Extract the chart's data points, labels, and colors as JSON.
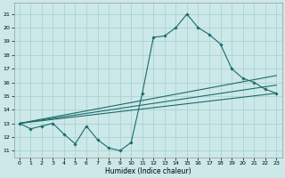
{
  "xlabel": "Humidex (Indice chaleur)",
  "xlim": [
    -0.5,
    23.5
  ],
  "ylim": [
    10.5,
    21.8
  ],
  "yticks": [
    11,
    12,
    13,
    14,
    15,
    16,
    17,
    18,
    19,
    20,
    21
  ],
  "xticks": [
    0,
    1,
    2,
    3,
    4,
    5,
    6,
    7,
    8,
    9,
    10,
    11,
    12,
    13,
    14,
    15,
    16,
    17,
    18,
    19,
    20,
    21,
    22,
    23
  ],
  "bg_color": "#cce8e8",
  "grid_color": "#aad4d0",
  "line_color": "#1a6b6b",
  "main_line": {
    "x": [
      0,
      1,
      2,
      3,
      4,
      5,
      6,
      7,
      8,
      9,
      10,
      11,
      12,
      13,
      14,
      15,
      16,
      17,
      18,
      19,
      20,
      21,
      22,
      23
    ],
    "y": [
      13.0,
      12.6,
      12.8,
      13.0,
      12.2,
      11.5,
      12.8,
      11.8,
      11.2,
      11.0,
      11.6,
      15.2,
      19.3,
      19.4,
      20.0,
      21.0,
      20.0,
      19.5,
      18.8,
      17.0,
      16.3,
      16.0,
      15.5,
      15.2
    ]
  },
  "linear_lines": [
    {
      "x": [
        0,
        23
      ],
      "y": [
        13.0,
        16.5
      ]
    },
    {
      "x": [
        0,
        23
      ],
      "y": [
        13.0,
        15.8
      ]
    },
    {
      "x": [
        0,
        23
      ],
      "y": [
        13.0,
        15.2
      ]
    }
  ]
}
